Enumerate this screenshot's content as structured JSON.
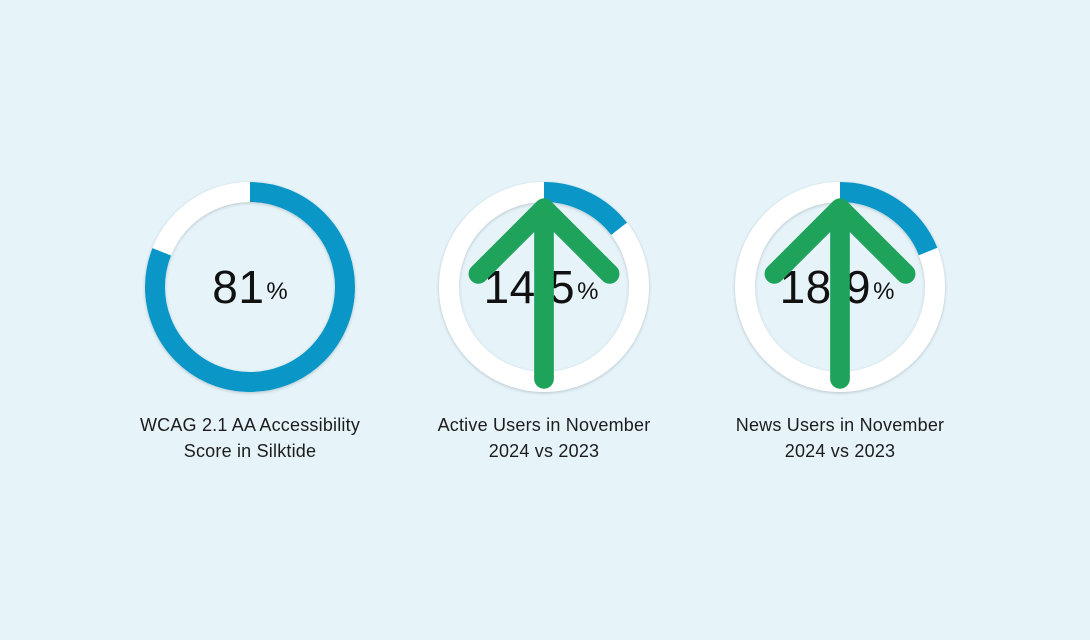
{
  "chart_data": [
    {
      "type": "donut",
      "value": 81,
      "value_label": "81",
      "unit": "%",
      "trend": "",
      "caption_lines": [
        "WCAG 2.1 AA Accessibility",
        "Score in Silktide"
      ]
    },
    {
      "type": "donut",
      "value": 14.5,
      "value_label": "14.5",
      "unit": "%",
      "trend": "up",
      "caption_lines": [
        "Active Users in November",
        "2024 vs 2023"
      ]
    },
    {
      "type": "donut",
      "value": 18.9,
      "value_label": "18.9",
      "unit": "%",
      "trend": "up",
      "caption_lines": [
        "News Users in November",
        "2024 vs 2023"
      ]
    }
  ],
  "colors": {
    "background": "#e6f4fa",
    "ring_fill": "#0a97c7",
    "ring_track": "#ffffff",
    "trend_up": "#1fa35a",
    "text": "#111111"
  }
}
